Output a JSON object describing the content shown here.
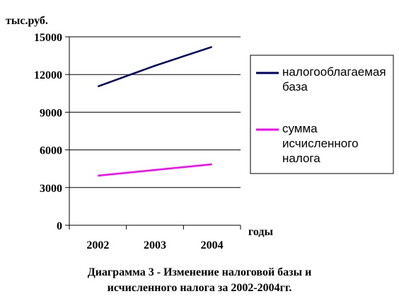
{
  "chart_data": {
    "type": "line",
    "ylabel": "тыс.руб.",
    "xlabel": "годы",
    "categories": [
      "2002",
      "2003",
      "2004"
    ],
    "ylim": [
      0,
      15000
    ],
    "yticks": [
      0,
      3000,
      6000,
      9000,
      12000,
      15000
    ],
    "ytick_labels": [
      "0",
      "3000",
      "6000",
      "9000",
      "12000",
      "15000"
    ],
    "grid": true,
    "legend_position": "right",
    "series": [
      {
        "name": "налогооблагаемая база",
        "name_lines": [
          "налогооблагаемая",
          "база"
        ],
        "color": "#00006a",
        "values": [
          11050,
          12700,
          14200
        ]
      },
      {
        "name": "сумма исчисленного налога",
        "name_lines": [
          "сумма",
          "исчисленного",
          "налога"
        ],
        "color": "#ff00ff",
        "values": [
          3950,
          4400,
          4850
        ]
      }
    ]
  },
  "caption_line1": "Диаграмма 3 - Изменение налоговой базы и",
  "caption_line2": "исчисленного налога за 2002-2004гг."
}
